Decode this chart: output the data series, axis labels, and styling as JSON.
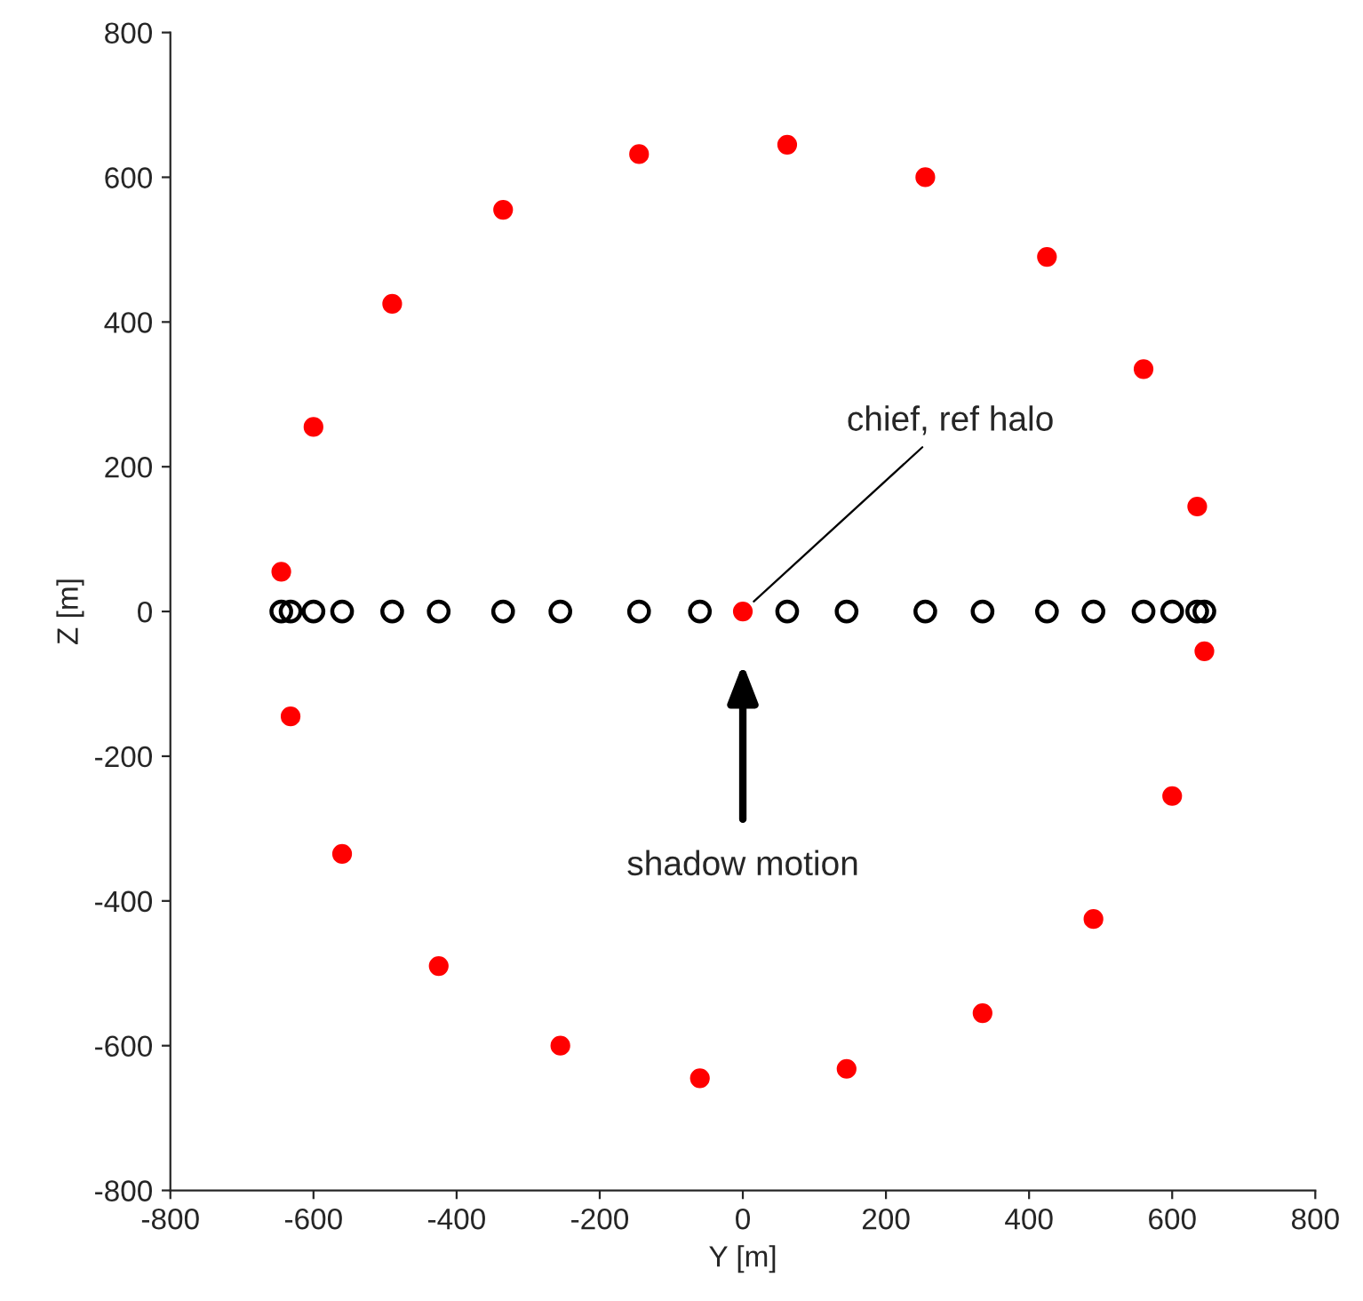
{
  "chart_data": {
    "type": "scatter",
    "xlabel": "Y [m]",
    "ylabel": "Z [m]",
    "xlim": [
      -800,
      800
    ],
    "ylim": [
      -800,
      800
    ],
    "xticks": [
      -800,
      -600,
      -400,
      -200,
      0,
      200,
      400,
      600,
      800
    ],
    "yticks": [
      -800,
      -600,
      -400,
      -200,
      0,
      200,
      400,
      600,
      800
    ],
    "grid": false,
    "legend": false,
    "marker": "circle",
    "series": [
      {
        "color": "#ff0000",
        "x": [
          62,
          255,
          425,
          560,
          635,
          645,
          600,
          490,
          335,
          145,
          -60,
          -255,
          -425,
          -560,
          -632,
          -645,
          -600,
          -490,
          -335,
          -145,
          0
        ],
        "values": [
          645,
          600,
          490,
          335,
          145,
          -55,
          -255,
          -425,
          -555,
          -632,
          -645,
          -600,
          -490,
          -335,
          -145,
          55,
          255,
          425,
          555,
          632,
          0
        ]
      },
      {
        "color": "#000000",
        "x": [
          62,
          255,
          425,
          560,
          635,
          645,
          600,
          490,
          335,
          145,
          -60,
          -255,
          -425,
          -560,
          -632,
          -645,
          -600,
          -490,
          -335,
          -145
        ],
        "values": [
          0,
          0,
          0,
          0,
          0,
          0,
          0,
          0,
          0,
          0,
          0,
          0,
          0,
          0,
          0,
          0,
          0,
          0,
          0,
          0
        ]
      }
    ],
    "annotations": [
      {
        "text": "chief, ref halo",
        "x": 0,
        "y": 0
      },
      "shadow motion"
    ]
  }
}
